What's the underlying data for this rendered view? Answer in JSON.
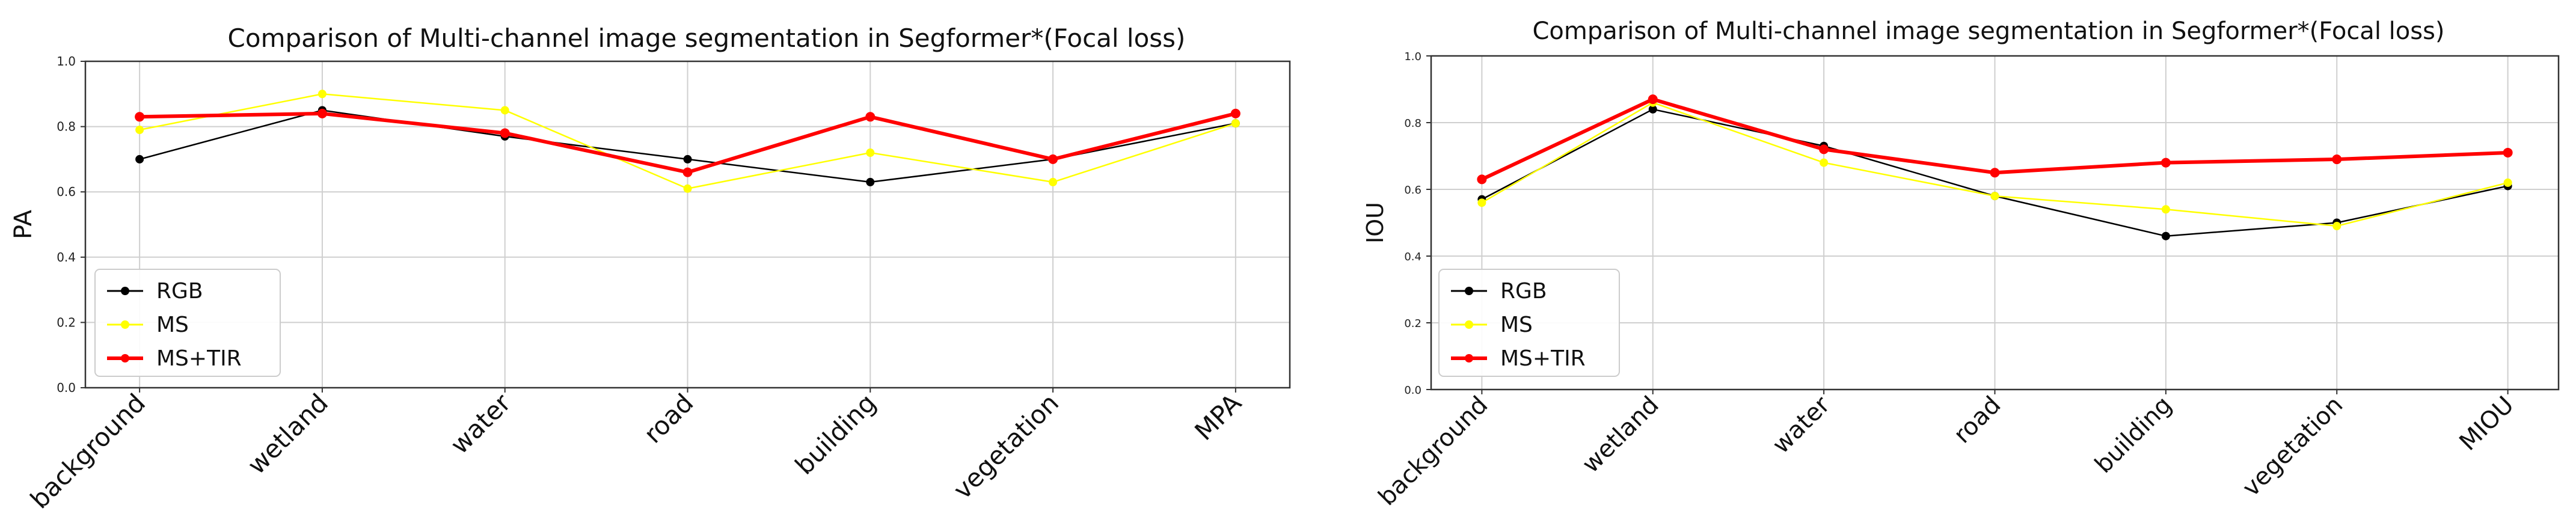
{
  "chart_data": [
    {
      "type": "line",
      "title": "Comparison of Multi-channel image segmentation in Segformer*(Focal loss)",
      "xlabel": "",
      "ylabel": "PA",
      "categories": [
        "background",
        "wetland",
        "water",
        "road",
        "building",
        "vegetation",
        "MPA"
      ],
      "ylim": [
        0,
        1.0
      ],
      "yticks": [
        "0.0",
        "0.2",
        "0.4",
        "0.6",
        "0.8",
        "1.0"
      ],
      "grid": true,
      "legend_position": "lower-left",
      "series": [
        {
          "name": "RGB",
          "color": "#000000",
          "values": [
            0.7,
            0.85,
            0.77,
            0.7,
            0.63,
            0.7,
            0.81
          ]
        },
        {
          "name": "MS",
          "color": "#ffff00",
          "values": [
            0.79,
            0.9,
            0.85,
            0.61,
            0.72,
            0.63,
            0.81
          ]
        },
        {
          "name": "MS+TIR",
          "color": "#ff0000",
          "values": [
            0.83,
            0.84,
            0.78,
            0.66,
            0.83,
            0.7,
            0.84
          ]
        }
      ]
    },
    {
      "type": "line",
      "title": "Comparison of Multi-channel image segmentation in Segformer*(Focal loss)",
      "xlabel": "",
      "ylabel": "IOU",
      "categories": [
        "background",
        "wetland",
        "water",
        "road",
        "building",
        "vegetation",
        "MIOU"
      ],
      "ylim": [
        0,
        1.0
      ],
      "yticks": [
        "0.0",
        "0.2",
        "0.4",
        "0.6",
        "0.8",
        "1.0"
      ],
      "grid": true,
      "legend_position": "lower-left",
      "series": [
        {
          "name": "RGB",
          "color": "#000000",
          "values": [
            0.57,
            0.84,
            0.73,
            0.58,
            0.46,
            0.5,
            0.61
          ]
        },
        {
          "name": "MS",
          "color": "#ffff00",
          "values": [
            0.56,
            0.86,
            0.68,
            0.58,
            0.54,
            0.49,
            0.62
          ]
        },
        {
          "name": "MS+TIR",
          "color": "#ff0000",
          "values": [
            0.63,
            0.87,
            0.72,
            0.65,
            0.68,
            0.69,
            0.71
          ]
        }
      ]
    }
  ]
}
